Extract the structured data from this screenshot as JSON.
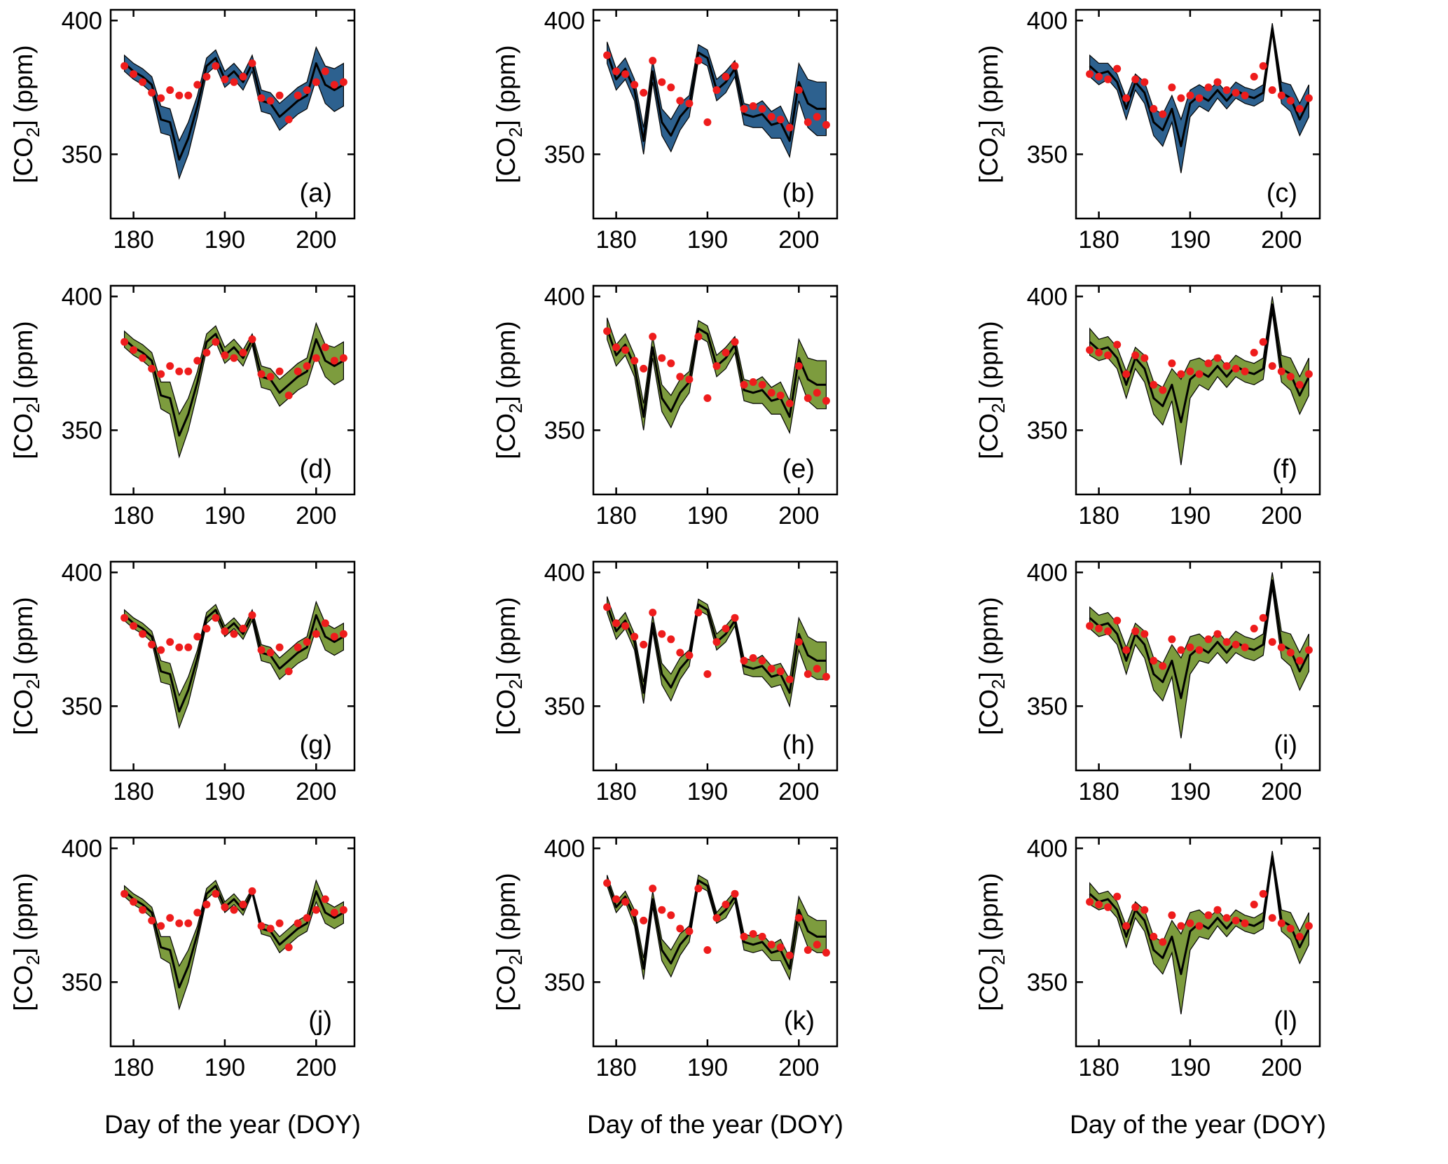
{
  "chart_data": {
    "type": "line",
    "title": "",
    "xlabel": "Day of the year (DOY)",
    "ylabel": "[CO2] (ppm)",
    "ylabel_parts": {
      "pre": "[CO",
      "sub": "2",
      "post": "] (ppm)"
    },
    "x": [
      179,
      180,
      181,
      182,
      183,
      184,
      185,
      186,
      187,
      188,
      189,
      190,
      191,
      192,
      193,
      194,
      195,
      196,
      197,
      198,
      199,
      200,
      201,
      202,
      203
    ],
    "xticks": [
      180,
      190,
      200
    ],
    "yticks": [
      350,
      400
    ],
    "xlim": [
      177.5,
      204.2
    ],
    "ylim": [
      326,
      404
    ],
    "grid": false,
    "legend": "none",
    "colors": {
      "blue": "#2d618f",
      "green": "#7d9c3e",
      "dot": "#ee1c1c",
      "line": "#000000"
    },
    "series_meaning": {
      "band": "model ensemble spread",
      "line": "model mean",
      "dots": "observations"
    },
    "columns": [
      {
        "line": [
          384,
          381,
          379,
          376,
          363,
          362,
          348,
          356,
          368,
          383,
          386,
          378,
          381,
          377,
          384,
          370,
          369,
          364,
          367,
          370,
          372,
          384,
          376,
          374,
          376
        ],
        "obs": [
          383,
          380,
          377,
          373,
          371,
          374,
          372,
          372,
          376,
          379,
          383,
          378,
          377,
          379,
          384,
          371,
          370,
          372,
          363,
          372,
          374,
          377,
          381,
          376,
          377
        ]
      },
      {
        "line": [
          388,
          378,
          382,
          374,
          355,
          381,
          362,
          357,
          364,
          368,
          388,
          386,
          374,
          377,
          382,
          365,
          364,
          365,
          361,
          362,
          355,
          377,
          369,
          367,
          367
        ],
        "obs": [
          387,
          381,
          380,
          376,
          373,
          385,
          377,
          375,
          370,
          369,
          385,
          362,
          374,
          379,
          383,
          367,
          368,
          367,
          364,
          363,
          360,
          374,
          362,
          364,
          361
        ]
      },
      {
        "line": [
          383,
          380,
          381,
          377,
          367,
          377,
          373,
          362,
          359,
          367,
          353,
          369,
          372,
          370,
          374,
          370,
          374,
          372,
          371,
          373,
          397,
          373,
          371,
          363,
          370
        ],
        "obs": [
          380,
          379,
          378,
          382,
          371,
          378,
          377,
          367,
          365,
          375,
          371,
          372,
          371,
          375,
          377,
          374,
          373,
          372,
          379,
          383,
          374,
          372,
          370,
          367,
          371
        ]
      }
    ],
    "panels": [
      {
        "label": "(a)",
        "column": 0,
        "fill": "blue",
        "show_xlabel": false,
        "halfwidth": [
          3,
          3,
          3,
          3,
          5,
          5,
          7,
          6,
          4,
          3,
          3,
          3,
          3,
          3,
          3,
          4,
          4,
          5,
          5,
          5,
          5,
          6,
          7,
          8,
          8
        ]
      },
      {
        "label": "(b)",
        "column": 1,
        "fill": "blue",
        "show_xlabel": false,
        "halfwidth": [
          4,
          4,
          4,
          4,
          5,
          4,
          5,
          6,
          5,
          4,
          3,
          3,
          4,
          4,
          3,
          4,
          4,
          5,
          5,
          6,
          6,
          7,
          9,
          10,
          10
        ]
      },
      {
        "label": "(c)",
        "column": 2,
        "fill": "blue",
        "show_xlabel": false,
        "halfwidth": [
          4,
          4,
          3,
          3,
          4,
          3,
          4,
          5,
          6,
          5,
          10,
          5,
          4,
          4,
          3,
          3,
          3,
          3,
          3,
          3,
          2,
          4,
          5,
          6,
          6
        ]
      },
      {
        "label": "(d)",
        "column": 0,
        "fill": "green",
        "show_xlabel": false,
        "halfwidth": [
          3,
          3,
          3,
          3,
          5,
          6,
          8,
          6,
          4,
          3,
          3,
          3,
          3,
          3,
          2,
          4,
          4,
          5,
          5,
          5,
          5,
          6,
          6,
          7,
          7
        ]
      },
      {
        "label": "(e)",
        "column": 1,
        "fill": "green",
        "show_xlabel": false,
        "halfwidth": [
          4,
          4,
          4,
          4,
          5,
          4,
          5,
          6,
          5,
          4,
          3,
          3,
          4,
          4,
          3,
          4,
          4,
          5,
          5,
          6,
          6,
          7,
          8,
          9,
          9
        ]
      },
      {
        "label": "(f)",
        "column": 2,
        "fill": "green",
        "show_xlabel": false,
        "halfwidth": [
          5,
          4,
          4,
          4,
          5,
          4,
          5,
          6,
          7,
          6,
          16,
          7,
          5,
          5,
          4,
          4,
          4,
          4,
          4,
          4,
          3,
          5,
          6,
          7,
          7
        ]
      },
      {
        "label": "(g)",
        "column": 0,
        "fill": "green",
        "show_xlabel": false,
        "halfwidth": [
          2,
          2,
          2,
          2,
          4,
          4,
          6,
          5,
          3,
          2,
          2,
          2,
          2,
          2,
          2,
          3,
          3,
          4,
          4,
          4,
          4,
          5,
          5,
          5,
          5
        ]
      },
      {
        "label": "(h)",
        "column": 1,
        "fill": "green",
        "show_xlabel": false,
        "halfwidth": [
          3,
          3,
          3,
          3,
          4,
          3,
          4,
          5,
          4,
          3,
          2,
          2,
          3,
          3,
          2,
          3,
          3,
          4,
          4,
          4,
          5,
          6,
          7,
          7,
          7
        ]
      },
      {
        "label": "(i)",
        "column": 2,
        "fill": "green",
        "show_xlabel": false,
        "halfwidth": [
          4,
          4,
          4,
          4,
          5,
          4,
          5,
          6,
          7,
          6,
          15,
          7,
          5,
          4,
          4,
          4,
          4,
          4,
          4,
          4,
          3,
          5,
          6,
          7,
          7
        ]
      },
      {
        "label": "(j)",
        "column": 0,
        "fill": "green",
        "show_xlabel": true,
        "halfwidth": [
          2,
          2,
          2,
          2,
          4,
          5,
          8,
          6,
          3,
          2,
          2,
          2,
          2,
          2,
          1,
          2,
          2,
          3,
          3,
          3,
          3,
          4,
          4,
          4,
          4
        ]
      },
      {
        "label": "(k)",
        "column": 1,
        "fill": "green",
        "show_xlabel": true,
        "halfwidth": [
          2,
          2,
          2,
          3,
          4,
          3,
          4,
          5,
          4,
          3,
          2,
          2,
          2,
          3,
          2,
          3,
          3,
          3,
          3,
          4,
          4,
          5,
          6,
          6,
          6
        ]
      },
      {
        "label": "(l)",
        "column": 2,
        "fill": "green",
        "show_xlabel": true,
        "halfwidth": [
          4,
          3,
          3,
          3,
          4,
          3,
          4,
          5,
          6,
          6,
          15,
          7,
          5,
          4,
          3,
          3,
          3,
          3,
          3,
          3,
          2,
          4,
          5,
          6,
          6
        ]
      }
    ]
  }
}
